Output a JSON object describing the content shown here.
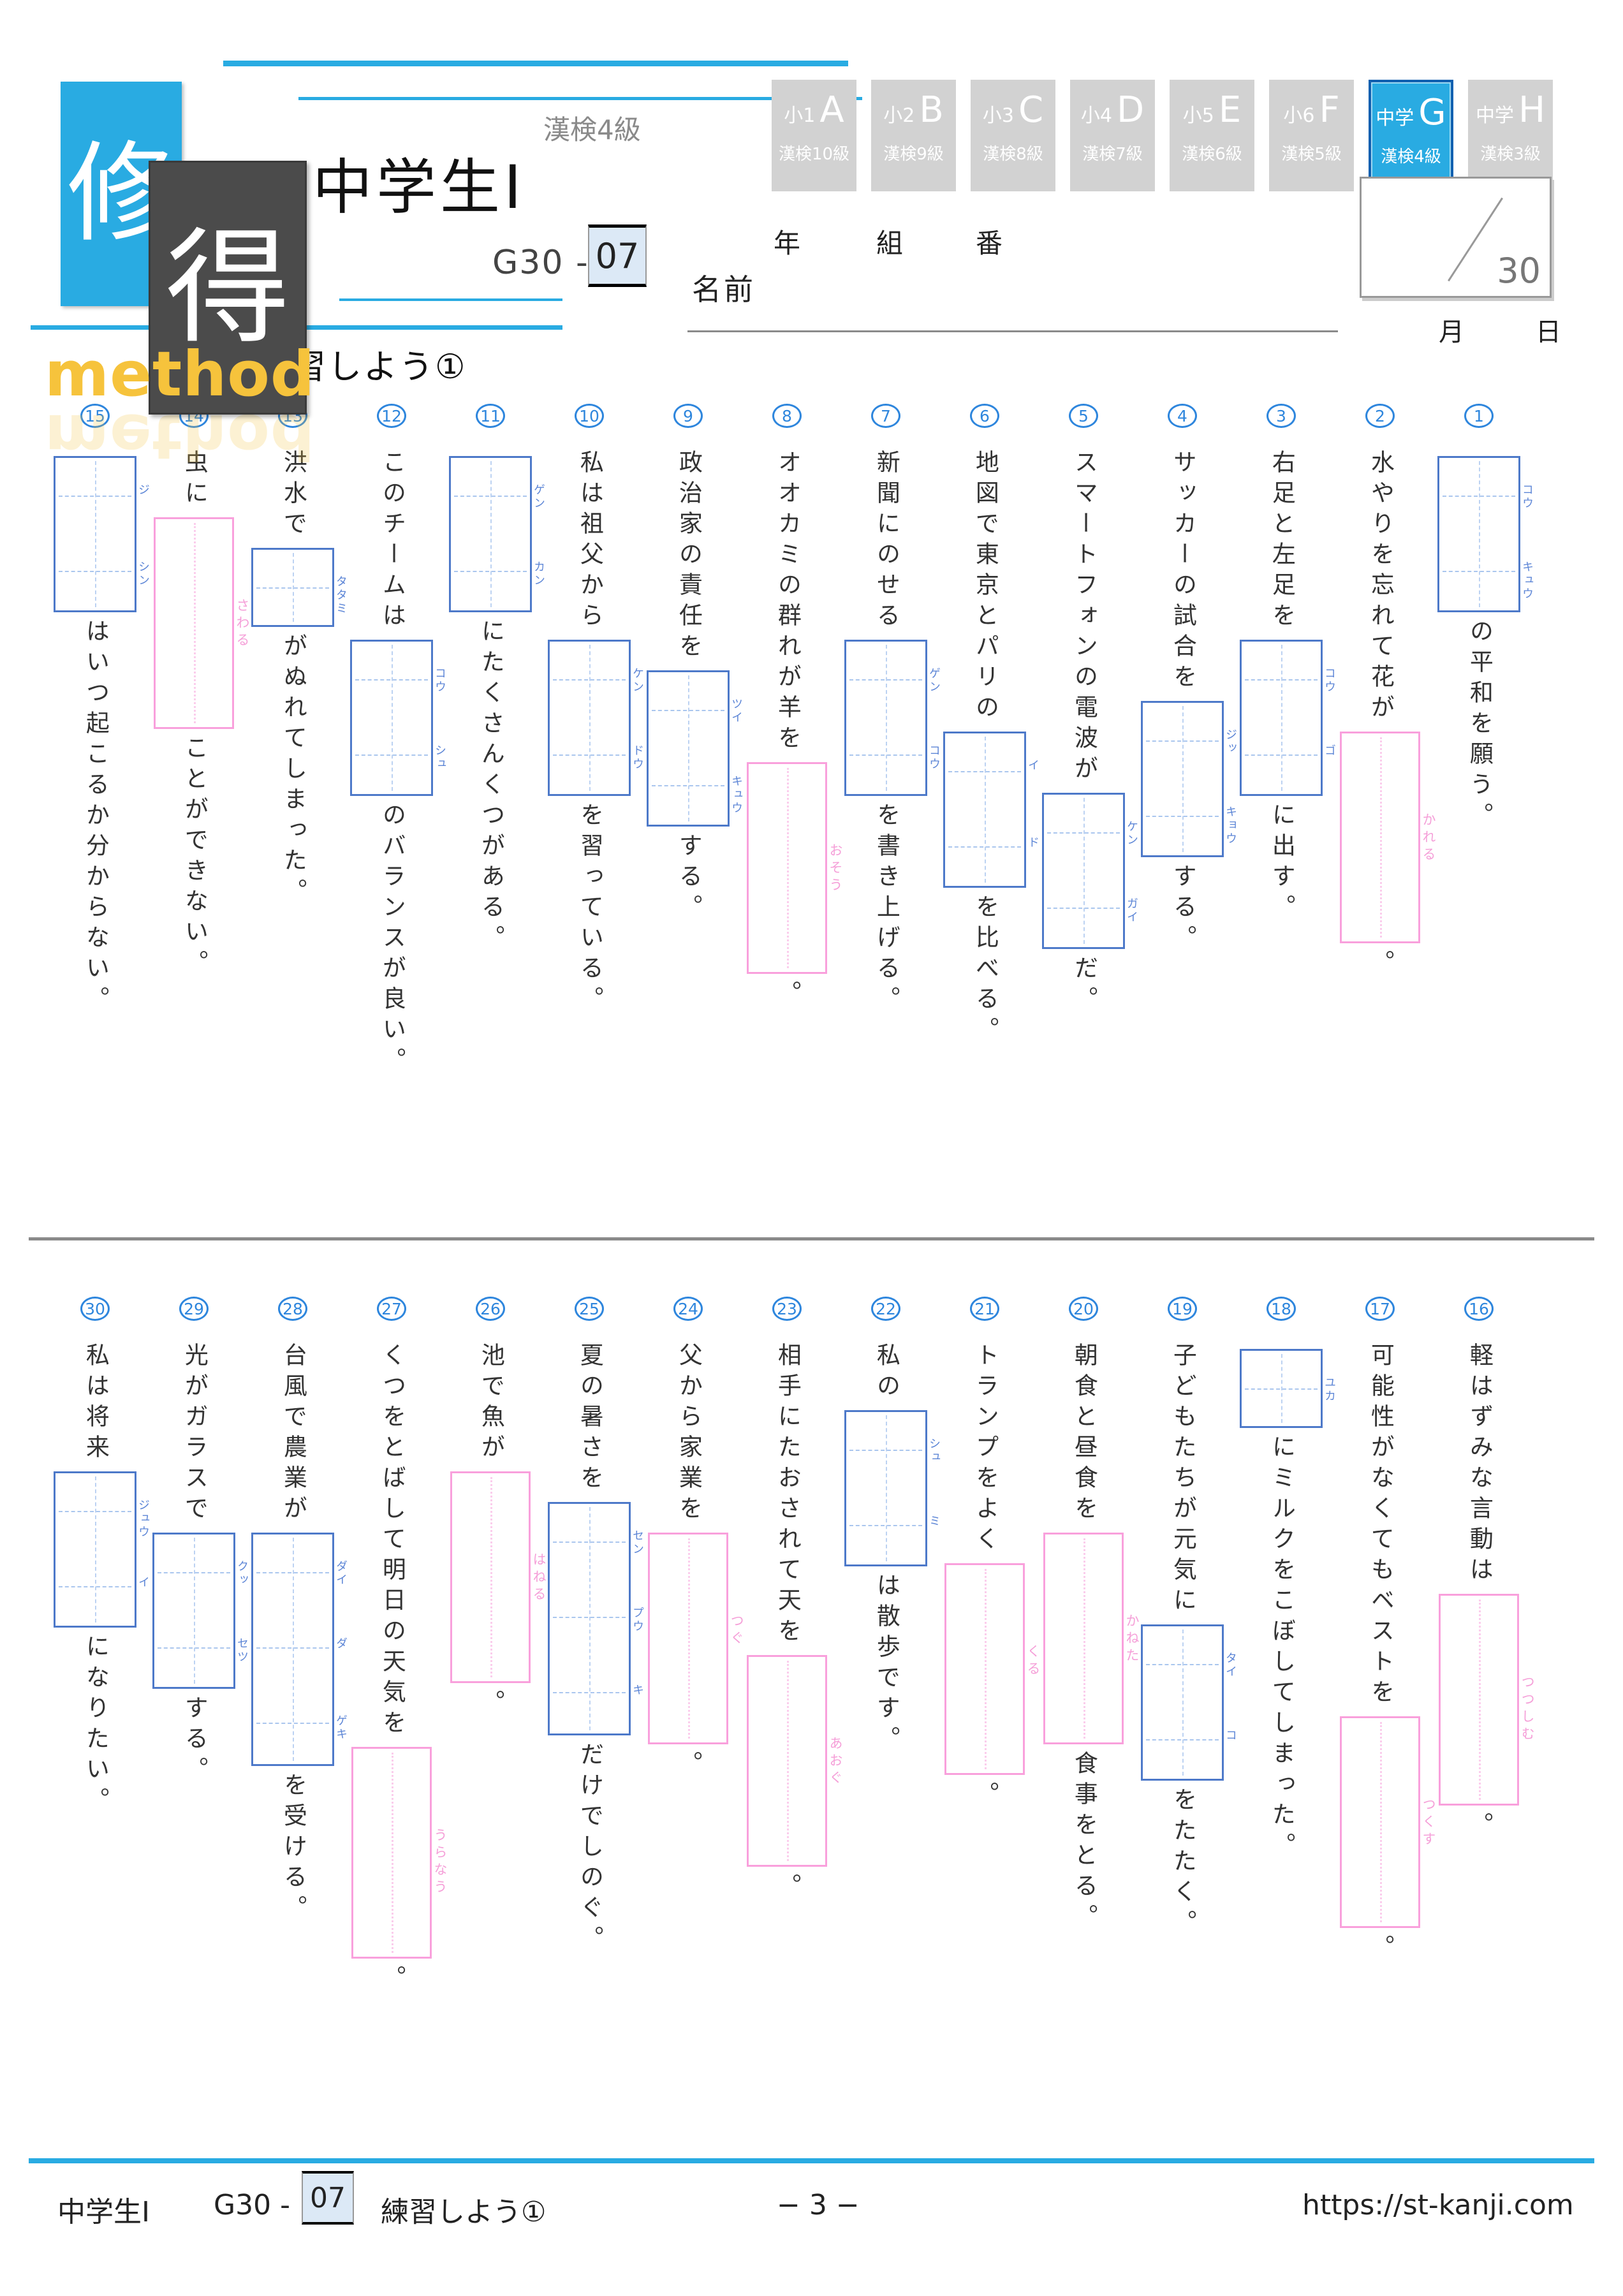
{
  "header": {
    "logo": {
      "kanji1": "修",
      "kanji2": "得",
      "method": "method"
    },
    "kanken_level": "漢検4級",
    "title": "中学生Ⅰ",
    "code_prefix": "G30 -",
    "code_number": "07",
    "subtitle": "練習しよう①",
    "year_label": "年",
    "class_label": "組",
    "number_label": "番",
    "name_label": "名前",
    "score_denominator": "30",
    "month_label": "月",
    "day_label": "日",
    "tabs": [
      {
        "grade": "小1",
        "letter": "A",
        "level": "漢検10級",
        "active": false
      },
      {
        "grade": "小2",
        "letter": "B",
        "level": "漢検9級",
        "active": false
      },
      {
        "grade": "小3",
        "letter": "C",
        "level": "漢検8級",
        "active": false
      },
      {
        "grade": "小4",
        "letter": "D",
        "level": "漢検7級",
        "active": false
      },
      {
        "grade": "小5",
        "letter": "E",
        "level": "漢検6級",
        "active": false
      },
      {
        "grade": "小6",
        "letter": "F",
        "level": "漢検5級",
        "active": false
      },
      {
        "grade": "中学",
        "letter": "G",
        "level": "漢検4級",
        "active": true
      },
      {
        "grade": "中学",
        "letter": "H",
        "level": "漢検3級",
        "active": false
      }
    ]
  },
  "colors": {
    "accent_cyan": "#29abe2",
    "box_blue": "#4d79c9",
    "furigana_blue": "#5c85d6",
    "box_pink": "#f9a0dc",
    "tab_gray": "#d2d2d2",
    "active_tab_border": "#1160b0"
  },
  "questions": [
    {
      "num": "1",
      "pre": "",
      "box": {
        "type": "blue",
        "cells": [
          "コウ",
          "キュウ"
        ]
      },
      "post": "の平和を願う。"
    },
    {
      "num": "2",
      "pre": "水やりを忘れて花が",
      "box": {
        "type": "pink",
        "reading": "かれる"
      },
      "post": "。"
    },
    {
      "num": "3",
      "pre": "右足と左足を",
      "box": {
        "type": "blue",
        "cells": [
          "コウ",
          "ゴ"
        ]
      },
      "post": "に出す。"
    },
    {
      "num": "4",
      "pre": "サッカーの試合を",
      "box": {
        "type": "blue",
        "cells": [
          "ジッ",
          "キョウ"
        ]
      },
      "post": "する。"
    },
    {
      "num": "5",
      "pre": "スマートフォンの電波が",
      "box": {
        "type": "blue",
        "cells": [
          "ケン",
          "ガイ"
        ]
      },
      "post": "だ。"
    },
    {
      "num": "6",
      "pre": "地図で東京とパリの",
      "box": {
        "type": "blue",
        "cells": [
          "イ",
          "ド"
        ]
      },
      "post": "を比べる。"
    },
    {
      "num": "7",
      "pre": "新聞にのせる",
      "box": {
        "type": "blue",
        "cells": [
          "ゲン",
          "コウ"
        ]
      },
      "post": "を書き上げる。"
    },
    {
      "num": "8",
      "pre": "オオカミの群れが羊を",
      "box": {
        "type": "pink",
        "reading": "おそう"
      },
      "post": "。"
    },
    {
      "num": "9",
      "pre": "政治家の責任を",
      "box": {
        "type": "blue",
        "cells": [
          "ツイ",
          "キュウ"
        ]
      },
      "post": "する。"
    },
    {
      "num": "10",
      "pre": "私は祖父から",
      "box": {
        "type": "blue",
        "cells": [
          "ケン",
          "ドウ"
        ]
      },
      "post": "を習っている。"
    },
    {
      "num": "11",
      "pre": "",
      "box": {
        "type": "blue",
        "cells": [
          "ゲン",
          "カン"
        ]
      },
      "post": "にたくさんくつがある。"
    },
    {
      "num": "12",
      "pre": "このチームは",
      "box": {
        "type": "blue",
        "cells": [
          "コウ",
          "シュ"
        ]
      },
      "post": "のバランスが良い。"
    },
    {
      "num": "13",
      "pre": "洪水で",
      "box": {
        "type": "blue",
        "cells": [
          "タタミ"
        ]
      },
      "post": "がぬれてしまった。"
    },
    {
      "num": "14",
      "pre": "虫に",
      "box": {
        "type": "pink",
        "reading": "さわる"
      },
      "post": "ことができない。"
    },
    {
      "num": "15",
      "pre": "",
      "box": {
        "type": "blue",
        "cells": [
          "ジ",
          "シン"
        ]
      },
      "post": "はいつ起こるか分からない。"
    },
    {
      "num": "16",
      "pre": "軽はずみな言動は",
      "box": {
        "type": "pink",
        "reading": "つつしむ"
      },
      "post": "。"
    },
    {
      "num": "17",
      "pre": "可能性がなくてもベストを",
      "box": {
        "type": "pink",
        "reading": "つくす"
      },
      "post": "。"
    },
    {
      "num": "18",
      "pre": "",
      "box": {
        "type": "blue",
        "cells": [
          "ユカ"
        ]
      },
      "post": "にミルクをこぼしてしまった。"
    },
    {
      "num": "19",
      "pre": "子どもたちが元気に",
      "box": {
        "type": "blue",
        "cells": [
          "タイ",
          "コ"
        ]
      },
      "post": "をたたく。"
    },
    {
      "num": "20",
      "pre": "朝食と昼食を",
      "box": {
        "type": "pink",
        "reading": "かねた"
      },
      "post": "食事をとる。"
    },
    {
      "num": "21",
      "pre": "トランプをよく",
      "box": {
        "type": "pink",
        "reading": "くる"
      },
      "post": "。"
    },
    {
      "num": "22",
      "pre": "私の",
      "box": {
        "type": "blue",
        "cells": [
          "シュ",
          "ミ"
        ]
      },
      "post": "は散歩です。"
    },
    {
      "num": "23",
      "pre": "相手にたおされて天を",
      "box": {
        "type": "pink",
        "reading": "あおぐ"
      },
      "post": "。"
    },
    {
      "num": "24",
      "pre": "父から家業を",
      "box": {
        "type": "pink",
        "reading": "つぐ"
      },
      "post": "。"
    },
    {
      "num": "25",
      "pre": "夏の暑さを",
      "box": {
        "type": "blue",
        "cells": [
          "セン",
          "プウ",
          "キ"
        ]
      },
      "post": "だけでしのぐ。"
    },
    {
      "num": "26",
      "pre": "池で魚が",
      "box": {
        "type": "pink",
        "reading": "はねる"
      },
      "post": "。"
    },
    {
      "num": "27",
      "pre": "くつをとばして明日の天気を",
      "box": {
        "type": "pink",
        "reading": "うらなう"
      },
      "post": "。"
    },
    {
      "num": "28",
      "pre": "台風で農業が",
      "box": {
        "type": "blue",
        "cells": [
          "ダイ",
          "ダ",
          "ゲキ"
        ]
      },
      "post": "を受ける。"
    },
    {
      "num": "29",
      "pre": "光がガラスで",
      "box": {
        "type": "blue",
        "cells": [
          "クッ",
          "セツ"
        ]
      },
      "post": "する。"
    },
    {
      "num": "30",
      "pre": "私は将来",
      "box": {
        "type": "blue",
        "cells": [
          "ジュウ",
          "イ"
        ]
      },
      "post": "になりたい。"
    }
  ],
  "footer": {
    "title": "中学生Ⅰ",
    "code_prefix": "G30 -",
    "code_number": "07",
    "subtitle": "練習しよう①",
    "page": "− 3 −",
    "url": "https://st-kanji.com"
  }
}
